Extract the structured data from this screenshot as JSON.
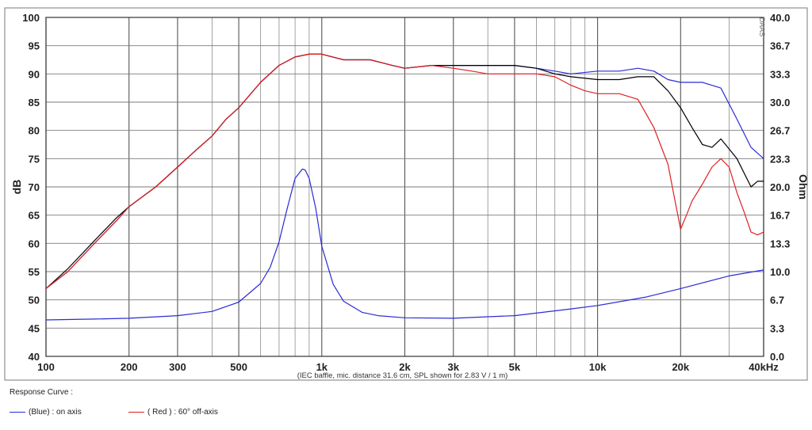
{
  "chart_data": {
    "type": "line",
    "xlabel": "",
    "x_scale": "log",
    "xlim": [
      100,
      40000
    ],
    "x_ticks": [
      {
        "value": 100,
        "label": "100"
      },
      {
        "value": 200,
        "label": "200"
      },
      {
        "value": 300,
        "label": "300"
      },
      {
        "value": 500,
        "label": "500"
      },
      {
        "value": 1000,
        "label": "1k"
      },
      {
        "value": 2000,
        "label": "2k"
      },
      {
        "value": 3000,
        "label": "3k"
      },
      {
        "value": 5000,
        "label": "5k"
      },
      {
        "value": 10000,
        "label": "10k"
      },
      {
        "value": 20000,
        "label": "20k"
      },
      {
        "value": 40000,
        "label": "40kHz"
      }
    ],
    "ylabel": "dB",
    "ylim": [
      40,
      100
    ],
    "y_ticks": [
      "40",
      "45",
      "50",
      "55",
      "60",
      "65",
      "70",
      "75",
      "80",
      "85",
      "90",
      "95",
      "100"
    ],
    "y2label": "Ohm",
    "y2lim": [
      0,
      40
    ],
    "y2_ticks": [
      "0.0",
      "3.3",
      "6.7",
      "10.0",
      "13.3",
      "16.7",
      "20.0",
      "23.3",
      "26.7",
      "30.0",
      "33.3",
      "36.7",
      "40.0"
    ],
    "watermark": "DAAS",
    "footnote": "(IEC baffle, mic. distance 31.6 cm, SPL shown for 2.83 V / 1 m)",
    "grid": true,
    "series": [
      {
        "name": "(Blue)  : on axis",
        "color": "#2b2bd6",
        "axis": "left",
        "x": [
          100,
          120,
          150,
          180,
          200,
          250,
          300,
          350,
          400,
          450,
          500,
          600,
          700,
          800,
          900,
          1000,
          1200,
          1500,
          1800,
          2000,
          2500,
          3000,
          3500,
          4000,
          5000,
          6000,
          7000,
          8000,
          10000,
          12000,
          14000,
          16000,
          18000,
          20000,
          24000,
          28000,
          32000,
          36000,
          40000
        ],
        "values": [
          52,
          55,
          60,
          64,
          66.5,
          70,
          73.5,
          76.5,
          79,
          82,
          84,
          88.5,
          91.5,
          93,
          93.5,
          93.5,
          92.5,
          92.5,
          91.5,
          91,
          91.5,
          91.5,
          91.5,
          91.5,
          91.5,
          91,
          90.5,
          90,
          90.5,
          90.5,
          91,
          90.5,
          89,
          88.5,
          88.5,
          87.5,
          82,
          77,
          75
        ]
      },
      {
        "name": "",
        "color": "#000000",
        "axis": "left",
        "x": [
          100,
          120,
          150,
          180,
          200,
          250,
          300,
          350,
          400,
          450,
          500,
          600,
          700,
          800,
          900,
          1000,
          1200,
          1500,
          1800,
          2000,
          2500,
          3000,
          3500,
          4000,
          5000,
          6000,
          7000,
          8000,
          10000,
          12000,
          14000,
          16000,
          18000,
          20000,
          22000,
          24000,
          26000,
          28000,
          32000,
          36000,
          38000,
          40000
        ],
        "values": [
          52,
          55.5,
          60.5,
          64.5,
          66.5,
          70,
          73.5,
          76.5,
          79,
          82,
          84,
          88.5,
          91.5,
          93,
          93.5,
          93.5,
          92.5,
          92.5,
          91.5,
          91,
          91.5,
          91.5,
          91.5,
          91.5,
          91.5,
          91,
          90,
          89.5,
          89,
          89,
          89.5,
          89.5,
          87,
          84,
          80.5,
          77.5,
          77,
          78.5,
          75,
          70,
          71,
          71
        ]
      },
      {
        "name": "( Red )  : 60° off-axis",
        "color": "#e02020",
        "axis": "left",
        "x": [
          100,
          120,
          150,
          180,
          200,
          250,
          300,
          350,
          400,
          450,
          500,
          600,
          700,
          800,
          900,
          1000,
          1200,
          1500,
          1800,
          2000,
          2500,
          3000,
          3500,
          4000,
          5000,
          6000,
          7000,
          8000,
          9000,
          10000,
          12000,
          14000,
          16000,
          18000,
          19000,
          20000,
          21000,
          22000,
          24000,
          26000,
          28000,
          30000,
          32000,
          34000,
          36000,
          38000,
          40000
        ],
        "values": [
          52,
          55,
          60,
          64,
          66.5,
          70,
          73.5,
          76.5,
          79,
          82,
          84,
          88.5,
          91.5,
          93,
          93.5,
          93.5,
          92.5,
          92.5,
          91.5,
          91,
          91.5,
          91,
          90.5,
          90,
          90,
          90,
          89.5,
          88,
          87,
          86.5,
          86.5,
          85.5,
          80.5,
          74,
          68,
          62.5,
          65,
          67.5,
          70.5,
          73.5,
          75,
          73.5,
          69,
          65.5,
          62,
          61.5,
          62
        ]
      },
      {
        "name": "",
        "color": "#2b2bd6",
        "axis": "right",
        "x": [
          100,
          150,
          200,
          300,
          400,
          500,
          600,
          650,
          700,
          750,
          800,
          850,
          870,
          900,
          950,
          1000,
          1100,
          1200,
          1400,
          1600,
          2000,
          3000,
          5000,
          8000,
          10000,
          15000,
          20000,
          30000,
          40000
        ],
        "values": [
          4.3,
          4.4,
          4.5,
          4.8,
          5.3,
          6.4,
          8.6,
          10.5,
          13.5,
          17.5,
          21.0,
          22.1,
          22.0,
          21.0,
          17.5,
          13.0,
          8.5,
          6.5,
          5.2,
          4.8,
          4.55,
          4.5,
          4.8,
          5.6,
          6.0,
          7.0,
          8.0,
          9.5,
          10.2
        ]
      }
    ]
  },
  "legend": {
    "title": "Response Curve :",
    "items": [
      {
        "label": "(Blue)  : on axis",
        "color": "#2b2bd6"
      },
      {
        "label": "( Red )  : 60° off-axis",
        "color": "#e02020"
      }
    ]
  }
}
